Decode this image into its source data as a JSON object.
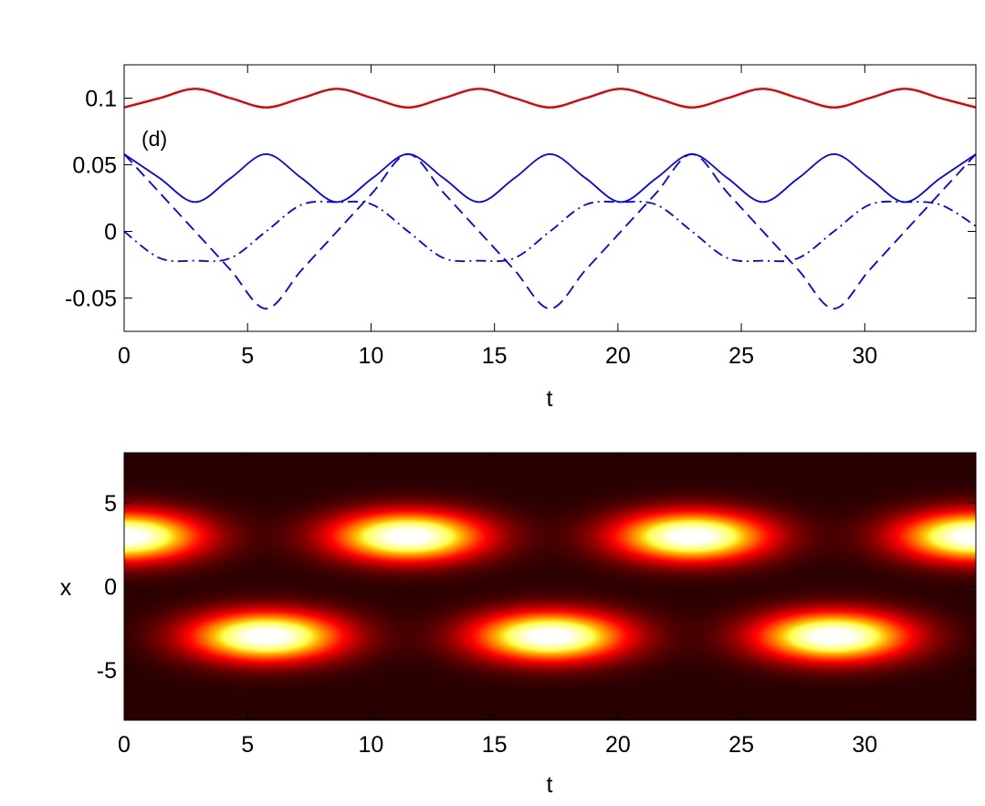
{
  "chart_data": [
    {
      "type": "line",
      "panel_label": "(d)",
      "xlabel": "t",
      "ylabel": "",
      "xlim": [
        0,
        34.5
      ],
      "ylim": [
        -0.075,
        0.125
      ],
      "xticks": [
        0,
        5,
        10,
        15,
        20,
        25,
        30
      ],
      "xtick_labels": [
        "0",
        "5",
        "10",
        "15",
        "20",
        "25",
        "30"
      ],
      "yticks": [
        -0.05,
        0,
        0.05,
        0.1
      ],
      "ytick_labels": [
        "-0.05",
        "0",
        "0.05",
        "0.1"
      ],
      "grid": false,
      "x": [
        0,
        1.4375,
        2.875,
        4.3125,
        5.75,
        7.1875,
        8.625,
        10.0625,
        11.5,
        12.9375,
        14.375,
        15.8125,
        17.25,
        18.6875,
        20.125,
        21.5625,
        23,
        24.4375,
        25.875,
        27.3125,
        28.75,
        30.1875,
        31.625,
        33.0625,
        34.5
      ],
      "series": [
        {
          "color": "#e00000",
          "style": "solid",
          "values": [
            0.093,
            0.1,
            0.107,
            0.1,
            0.093,
            0.1,
            0.107,
            0.1,
            0.093,
            0.1,
            0.107,
            0.1,
            0.093,
            0.1,
            0.107,
            0.1,
            0.093,
            0.1,
            0.107,
            0.1,
            0.093,
            0.1,
            0.107,
            0.1,
            0.093
          ]
        },
        {
          "color": "#0000ff",
          "style": "solid",
          "values": [
            0.058,
            0.04,
            0.022,
            0.04,
            0.058,
            0.04,
            0.022,
            0.04,
            0.058,
            0.04,
            0.022,
            0.04,
            0.058,
            0.04,
            0.022,
            0.04,
            0.058,
            0.04,
            0.022,
            0.04,
            0.058,
            0.04,
            0.022,
            0.04,
            0.058
          ]
        },
        {
          "color": "#0000ff",
          "style": "dashed",
          "values": [
            0.058,
            0.029,
            0,
            -0.029,
            -0.058,
            -0.029,
            0,
            0.029,
            0.058,
            0.029,
            0,
            -0.029,
            -0.058,
            -0.029,
            0,
            0.029,
            0.058,
            0.029,
            0,
            -0.029,
            -0.058,
            -0.029,
            0,
            0.029,
            0.058
          ]
        },
        {
          "color": "#0000ff",
          "style": "dashdot",
          "values": [
            0,
            -0.02,
            -0.022,
            -0.02,
            0,
            0.02,
            0.022,
            0.02,
            0,
            -0.02,
            -0.022,
            -0.02,
            0,
            0.02,
            0.022,
            0.02,
            0,
            -0.02,
            -0.022,
            -0.02,
            0,
            0.02,
            0.022,
            0.02,
            0.004
          ]
        }
      ]
    },
    {
      "type": "heatmap",
      "xlabel": "t",
      "ylabel": "x",
      "xlim": [
        0,
        34.5
      ],
      "ylim": [
        -8,
        8
      ],
      "xticks": [
        0,
        5,
        10,
        15,
        20,
        25,
        30
      ],
      "xtick_labels": [
        "0",
        "5",
        "10",
        "15",
        "20",
        "25",
        "30"
      ],
      "yticks": [
        -5,
        0,
        5
      ],
      "ytick_labels": [
        "-5",
        "0",
        "5"
      ],
      "colormap": "hot",
      "peaks": [
        {
          "t": 0,
          "x": 3
        },
        {
          "t": 11.5,
          "x": 3
        },
        {
          "t": 23,
          "x": 3
        },
        {
          "t": 34.5,
          "x": 3
        },
        {
          "t": 5.75,
          "x": -3
        },
        {
          "t": 17.25,
          "x": -3
        },
        {
          "t": 28.75,
          "x": -3
        }
      ]
    }
  ]
}
